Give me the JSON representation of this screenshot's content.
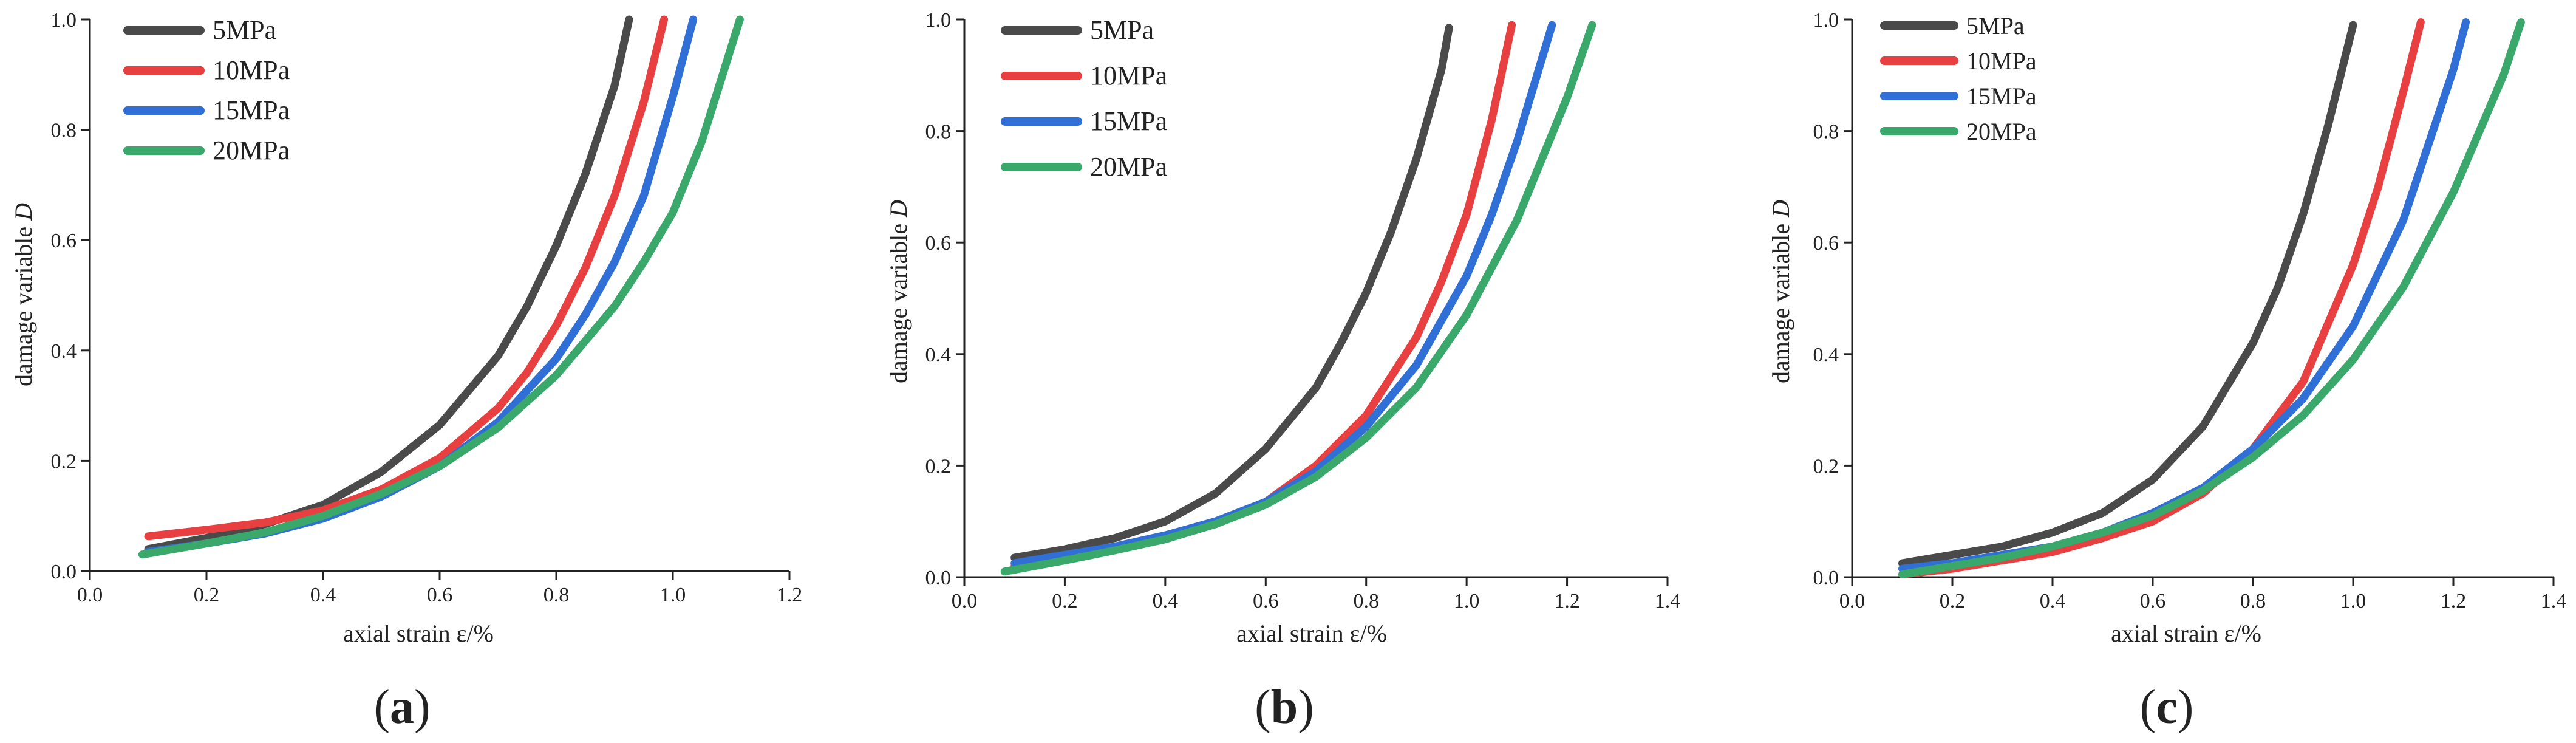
{
  "chart_data": [
    {
      "type": "line",
      "panel_label": "a",
      "xlabel": "axial strain  ε/%",
      "ylabel_prefix": "damage variable  ",
      "ylabel_symbol": "D",
      "xlim": [
        0.0,
        1.2
      ],
      "ylim": [
        0.0,
        1.0
      ],
      "xticks": [
        "0.0",
        "0.2",
        "0.4",
        "0.6",
        "0.8",
        "1.0",
        "1.2"
      ],
      "yticks": [
        "0.0",
        "0.2",
        "0.4",
        "0.6",
        "0.8",
        "1.0"
      ],
      "legend_position": "top-left",
      "series": [
        {
          "name": "5MPa",
          "color": "#4a4a4a",
          "x": [
            0.1,
            0.2,
            0.3,
            0.4,
            0.5,
            0.6,
            0.7,
            0.75,
            0.8,
            0.85,
            0.9,
            0.925
          ],
          "y": [
            0.04,
            0.06,
            0.085,
            0.12,
            0.18,
            0.265,
            0.39,
            0.48,
            0.59,
            0.72,
            0.88,
            1.0
          ]
        },
        {
          "name": "10MPa",
          "color": "#e84040",
          "x": [
            0.1,
            0.2,
            0.3,
            0.4,
            0.5,
            0.6,
            0.7,
            0.75,
            0.8,
            0.85,
            0.9,
            0.95,
            0.985
          ],
          "y": [
            0.063,
            0.075,
            0.088,
            0.11,
            0.148,
            0.205,
            0.295,
            0.36,
            0.445,
            0.55,
            0.68,
            0.85,
            1.0
          ]
        },
        {
          "name": "15MPa",
          "color": "#2f6fd6",
          "x": [
            0.1,
            0.2,
            0.3,
            0.4,
            0.5,
            0.6,
            0.7,
            0.8,
            0.85,
            0.9,
            0.95,
            1.0,
            1.035
          ],
          "y": [
            0.035,
            0.05,
            0.068,
            0.095,
            0.135,
            0.19,
            0.27,
            0.385,
            0.465,
            0.56,
            0.68,
            0.86,
            1.0
          ]
        },
        {
          "name": "20MPa",
          "color": "#3aa86b",
          "x": [
            0.09,
            0.2,
            0.3,
            0.4,
            0.5,
            0.6,
            0.7,
            0.8,
            0.9,
            0.95,
            1.0,
            1.05,
            1.115
          ],
          "y": [
            0.03,
            0.05,
            0.07,
            0.1,
            0.14,
            0.19,
            0.26,
            0.355,
            0.48,
            0.56,
            0.65,
            0.78,
            1.0
          ]
        }
      ]
    },
    {
      "type": "line",
      "panel_label": "b",
      "xlabel": "axial strain ε/%",
      "ylabel_prefix": "damage variable  ",
      "ylabel_symbol": "D",
      "xlim": [
        0.0,
        1.4
      ],
      "ylim": [
        0.0,
        1.0
      ],
      "xticks": [
        "0.0",
        "0.2",
        "0.4",
        "0.6",
        "0.8",
        "1.0",
        "1.2",
        "1.4"
      ],
      "yticks": [
        "0.0",
        "0.2",
        "0.4",
        "0.6",
        "0.8",
        "1.0"
      ],
      "legend_position": "top-left",
      "series": [
        {
          "name": "5MPa",
          "color": "#4a4a4a",
          "x": [
            0.1,
            0.2,
            0.3,
            0.4,
            0.5,
            0.6,
            0.7,
            0.75,
            0.8,
            0.85,
            0.9,
            0.95,
            0.965
          ],
          "y": [
            0.035,
            0.05,
            0.07,
            0.1,
            0.15,
            0.23,
            0.34,
            0.42,
            0.51,
            0.62,
            0.75,
            0.91,
            0.985
          ]
        },
        {
          "name": "10MPa",
          "color": "#e84040",
          "x": [
            0.1,
            0.2,
            0.3,
            0.4,
            0.5,
            0.6,
            0.7,
            0.8,
            0.9,
            0.95,
            1.0,
            1.05,
            1.09
          ],
          "y": [
            0.02,
            0.035,
            0.05,
            0.07,
            0.095,
            0.135,
            0.2,
            0.29,
            0.43,
            0.53,
            0.65,
            0.82,
            0.99
          ]
        },
        {
          "name": "15MPa",
          "color": "#2f6fd6",
          "x": [
            0.1,
            0.2,
            0.3,
            0.4,
            0.5,
            0.6,
            0.7,
            0.8,
            0.9,
            1.0,
            1.05,
            1.1,
            1.17
          ],
          "y": [
            0.025,
            0.04,
            0.055,
            0.075,
            0.1,
            0.135,
            0.19,
            0.27,
            0.38,
            0.54,
            0.65,
            0.78,
            0.99
          ]
        },
        {
          "name": "20MPa",
          "color": "#3aa86b",
          "x": [
            0.08,
            0.2,
            0.3,
            0.4,
            0.5,
            0.6,
            0.7,
            0.8,
            0.9,
            1.0,
            1.1,
            1.2,
            1.25
          ],
          "y": [
            0.01,
            0.03,
            0.048,
            0.068,
            0.095,
            0.13,
            0.18,
            0.25,
            0.34,
            0.47,
            0.64,
            0.86,
            0.99
          ]
        }
      ]
    },
    {
      "type": "line",
      "panel_label": "c",
      "xlabel": "axial strain  ε/%",
      "ylabel_prefix": "damage variable  ",
      "ylabel_symbol": "D",
      "xlim": [
        0.0,
        1.4
      ],
      "ylim": [
        0.0,
        1.0
      ],
      "xticks": [
        "0.0",
        "0.2",
        "0.4",
        "0.6",
        "0.8",
        "1.0",
        "1.2",
        "1.4"
      ],
      "yticks": [
        "0.0",
        "0.2",
        "0.4",
        "0.6",
        "0.8",
        "1.0"
      ],
      "legend_position": "top-left",
      "series": [
        {
          "name": "5MPa",
          "color": "#4a4a4a",
          "x": [
            0.1,
            0.2,
            0.3,
            0.4,
            0.5,
            0.6,
            0.7,
            0.8,
            0.85,
            0.9,
            0.95,
            1.0
          ],
          "y": [
            0.025,
            0.04,
            0.055,
            0.08,
            0.115,
            0.175,
            0.27,
            0.42,
            0.52,
            0.65,
            0.81,
            0.99
          ]
        },
        {
          "name": "10MPa",
          "color": "#e84040",
          "x": [
            0.1,
            0.2,
            0.3,
            0.4,
            0.5,
            0.6,
            0.7,
            0.8,
            0.9,
            1.0,
            1.05,
            1.1,
            1.135
          ],
          "y": [
            0.005,
            0.015,
            0.03,
            0.045,
            0.07,
            0.1,
            0.15,
            0.23,
            0.35,
            0.56,
            0.7,
            0.87,
            0.995
          ]
        },
        {
          "name": "15MPa",
          "color": "#2f6fd6",
          "x": [
            0.1,
            0.2,
            0.3,
            0.4,
            0.5,
            0.6,
            0.7,
            0.8,
            0.9,
            1.0,
            1.1,
            1.2,
            1.225
          ],
          "y": [
            0.015,
            0.025,
            0.04,
            0.055,
            0.08,
            0.115,
            0.16,
            0.23,
            0.32,
            0.45,
            0.64,
            0.91,
            0.995
          ]
        },
        {
          "name": "20MPa",
          "color": "#3aa86b",
          "x": [
            0.1,
            0.2,
            0.3,
            0.4,
            0.5,
            0.6,
            0.7,
            0.8,
            0.9,
            1.0,
            1.1,
            1.2,
            1.3,
            1.335
          ],
          "y": [
            0.005,
            0.02,
            0.035,
            0.055,
            0.08,
            0.11,
            0.155,
            0.215,
            0.29,
            0.39,
            0.52,
            0.69,
            0.9,
            0.995
          ]
        }
      ]
    }
  ]
}
